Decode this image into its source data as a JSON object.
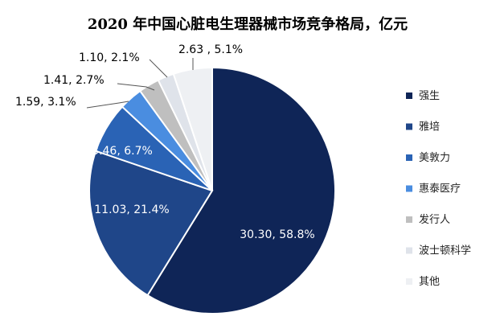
{
  "chart_data": {
    "type": "pie",
    "title": "2020 年中国心脏电生理器械市场竞争格局，亿元",
    "legend_position": "right",
    "slices": [
      {
        "name": "强生",
        "value": 30.3,
        "percent": "58.8%",
        "label": "30.30, 58.8%",
        "color": "#0f2557",
        "label_color": "#ffffff"
      },
      {
        "name": "雅培",
        "value": 11.03,
        "percent": "21.4%",
        "label": "11.03, 21.4%",
        "color": "#1f4689",
        "label_color": "#ffffff"
      },
      {
        "name": "美敦力",
        "value": 3.46,
        "percent": "6.7%",
        "label": "3.46, 6.7%",
        "color": "#2a63b5",
        "label_color": "#ffffff"
      },
      {
        "name": "惠泰医疗",
        "value": 1.59,
        "percent": "3.1%",
        "label": "1.59, 3.1%",
        "color": "#4a8de0",
        "label_color": "#000000"
      },
      {
        "name": "发行人",
        "value": 1.41,
        "percent": "2.7%",
        "label": "1.41, 2.7%",
        "color": "#bfbfbf",
        "label_color": "#000000"
      },
      {
        "name": "波士顿科学",
        "value": 1.1,
        "percent": "2.1%",
        "label": "1.10, 2.1%",
        "color": "#dfe3ea",
        "label_color": "#000000"
      },
      {
        "name": "其他",
        "value": 2.63,
        "percent": "5.1%",
        "label": "2.63 , 5.1%",
        "color": "#eef0f3",
        "label_color": "#000000"
      }
    ]
  }
}
